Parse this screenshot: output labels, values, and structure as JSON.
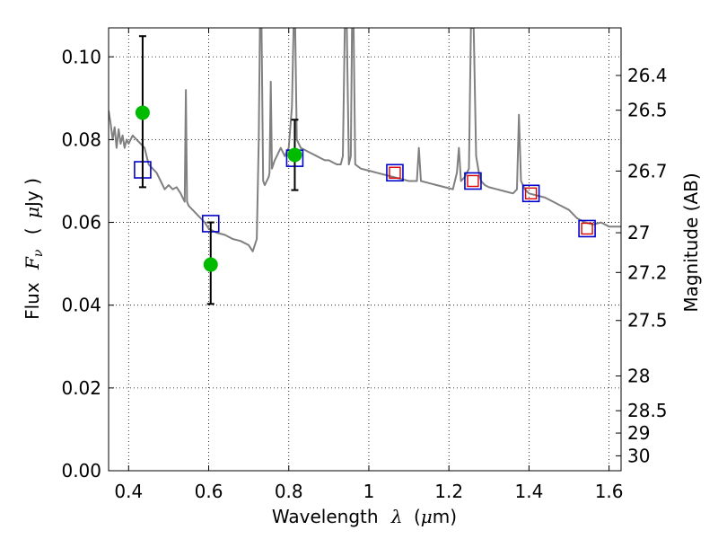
{
  "chart_data": {
    "type": "scatter",
    "xlabel_prefix": "Wavelength",
    "xlabel_symbol": "λ",
    "xlabel_unit_open": "(",
    "xlabel_unit_mu": "μ",
    "xlabel_unit_rest": "m)",
    "ylabel_prefix": "Flux",
    "ylabel_symbol": "F",
    "ylabel_subscript": "ν",
    "ylabel_unit_open": "(",
    "ylabel_unit_mu": "μ",
    "ylabel_unit_rest": "Jy )",
    "y2label": "Magnitude (AB)",
    "xlim": [
      0.35,
      1.63
    ],
    "ylim": [
      0.0,
      0.107
    ],
    "x_ticks": [
      {
        "value": 0.4,
        "label": "0.4"
      },
      {
        "value": 0.6,
        "label": "0.6"
      },
      {
        "value": 0.8,
        "label": "0.8"
      },
      {
        "value": 1.0,
        "label": "1"
      },
      {
        "value": 1.2,
        "label": "1.2"
      },
      {
        "value": 1.4,
        "label": "1.4"
      },
      {
        "value": 1.6,
        "label": "1.6"
      }
    ],
    "y_ticks": [
      {
        "value": 0.0,
        "label": "0.00"
      },
      {
        "value": 0.02,
        "label": "0.02"
      },
      {
        "value": 0.04,
        "label": "0.04"
      },
      {
        "value": 0.06,
        "label": "0.06"
      },
      {
        "value": 0.08,
        "label": "0.08"
      },
      {
        "value": 0.1,
        "label": "0.10"
      }
    ],
    "mag_ticks": [
      {
        "flux": 0.0955,
        "label": "26.4"
      },
      {
        "flux": 0.0871,
        "label": "26.5"
      },
      {
        "flux": 0.0724,
        "label": "26.7"
      },
      {
        "flux": 0.0575,
        "label": "27"
      },
      {
        "flux": 0.0479,
        "label": "27.2"
      },
      {
        "flux": 0.0363,
        "label": "27.5"
      },
      {
        "flux": 0.0229,
        "label": "28"
      },
      {
        "flux": 0.0145,
        "label": "28.5"
      },
      {
        "flux": 0.0091,
        "label": "29"
      },
      {
        "flux": 0.0036,
        "label": "30"
      }
    ],
    "grid": true,
    "colors": {
      "sed": "#808080",
      "observed": "#00bb00",
      "model_box": "#0000cc",
      "model_inner": "#dd0000",
      "errorbar": "#000000"
    },
    "sed_model": [
      [
        0.35,
        0.087
      ],
      [
        0.355,
        0.084
      ],
      [
        0.36,
        0.08
      ],
      [
        0.365,
        0.083
      ],
      [
        0.37,
        0.078
      ],
      [
        0.375,
        0.0825
      ],
      [
        0.38,
        0.079
      ],
      [
        0.385,
        0.081
      ],
      [
        0.39,
        0.078
      ],
      [
        0.395,
        0.08
      ],
      [
        0.4,
        0.079
      ],
      [
        0.41,
        0.081
      ],
      [
        0.42,
        0.08
      ],
      [
        0.43,
        0.079
      ],
      [
        0.44,
        0.078
      ],
      [
        0.45,
        0.074
      ],
      [
        0.46,
        0.073
      ],
      [
        0.47,
        0.072
      ],
      [
        0.48,
        0.07
      ],
      [
        0.49,
        0.068
      ],
      [
        0.5,
        0.069
      ],
      [
        0.51,
        0.068
      ],
      [
        0.52,
        0.0685
      ],
      [
        0.53,
        0.067
      ],
      [
        0.535,
        0.066
      ],
      [
        0.54,
        0.065
      ],
      [
        0.543,
        0.092
      ],
      [
        0.546,
        0.065
      ],
      [
        0.55,
        0.064
      ],
      [
        0.56,
        0.063
      ],
      [
        0.57,
        0.062
      ],
      [
        0.58,
        0.061
      ],
      [
        0.59,
        0.06
      ],
      [
        0.6,
        0.0585
      ],
      [
        0.62,
        0.0575
      ],
      [
        0.64,
        0.057
      ],
      [
        0.66,
        0.056
      ],
      [
        0.68,
        0.0555
      ],
      [
        0.7,
        0.0545
      ],
      [
        0.71,
        0.053
      ],
      [
        0.72,
        0.056
      ],
      [
        0.725,
        0.08
      ],
      [
        0.728,
        0.107
      ],
      [
        0.732,
        0.107
      ],
      [
        0.736,
        0.07
      ],
      [
        0.74,
        0.069
      ],
      [
        0.745,
        0.07
      ],
      [
        0.75,
        0.071
      ],
      [
        0.752,
        0.072
      ],
      [
        0.755,
        0.094
      ],
      [
        0.758,
        0.073
      ],
      [
        0.765,
        0.075
      ],
      [
        0.77,
        0.076
      ],
      [
        0.78,
        0.078
      ],
      [
        0.79,
        0.076
      ],
      [
        0.8,
        0.078
      ],
      [
        0.808,
        0.088
      ],
      [
        0.812,
        0.107
      ],
      [
        0.816,
        0.107
      ],
      [
        0.82,
        0.08
      ],
      [
        0.83,
        0.078
      ],
      [
        0.84,
        0.0775
      ],
      [
        0.85,
        0.077
      ],
      [
        0.86,
        0.0765
      ],
      [
        0.87,
        0.076
      ],
      [
        0.88,
        0.0755
      ],
      [
        0.89,
        0.075
      ],
      [
        0.9,
        0.075
      ],
      [
        0.91,
        0.0745
      ],
      [
        0.92,
        0.074
      ],
      [
        0.93,
        0.074
      ],
      [
        0.935,
        0.076
      ],
      [
        0.94,
        0.107
      ],
      [
        0.945,
        0.107
      ],
      [
        0.95,
        0.074
      ],
      [
        0.955,
        0.076
      ],
      [
        0.958,
        0.107
      ],
      [
        0.962,
        0.107
      ],
      [
        0.966,
        0.074
      ],
      [
        0.98,
        0.073
      ],
      [
        1.0,
        0.0725
      ],
      [
        1.02,
        0.072
      ],
      [
        1.04,
        0.0715
      ],
      [
        1.06,
        0.071
      ],
      [
        1.08,
        0.0705
      ],
      [
        1.1,
        0.07
      ],
      [
        1.12,
        0.07
      ],
      [
        1.125,
        0.078
      ],
      [
        1.13,
        0.07
      ],
      [
        1.15,
        0.0695
      ],
      [
        1.17,
        0.069
      ],
      [
        1.19,
        0.0685
      ],
      [
        1.21,
        0.068
      ],
      [
        1.22,
        0.072
      ],
      [
        1.225,
        0.078
      ],
      [
        1.23,
        0.07
      ],
      [
        1.24,
        0.071
      ],
      [
        1.25,
        0.073
      ],
      [
        1.255,
        0.107
      ],
      [
        1.262,
        0.107
      ],
      [
        1.268,
        0.076
      ],
      [
        1.275,
        0.072
      ],
      [
        1.28,
        0.07
      ],
      [
        1.29,
        0.069
      ],
      [
        1.3,
        0.0685
      ],
      [
        1.32,
        0.068
      ],
      [
        1.34,
        0.0675
      ],
      [
        1.36,
        0.067
      ],
      [
        1.37,
        0.068
      ],
      [
        1.375,
        0.086
      ],
      [
        1.38,
        0.07
      ],
      [
        1.39,
        0.068
      ],
      [
        1.4,
        0.067
      ],
      [
        1.42,
        0.0665
      ],
      [
        1.44,
        0.066
      ],
      [
        1.46,
        0.065
      ],
      [
        1.48,
        0.064
      ],
      [
        1.5,
        0.063
      ],
      [
        1.52,
        0.061
      ],
      [
        1.54,
        0.06
      ],
      [
        1.56,
        0.0595
      ],
      [
        1.58,
        0.06
      ],
      [
        1.6,
        0.059
      ],
      [
        1.62,
        0.059
      ],
      [
        1.63,
        0.059
      ]
    ],
    "observed": [
      {
        "x": 0.435,
        "y": 0.0865,
        "err_lo": 0.0685,
        "err_hi": 0.105
      },
      {
        "x": 0.605,
        "y": 0.0498,
        "err_lo": 0.0403,
        "err_hi": 0.06
      },
      {
        "x": 0.815,
        "y": 0.0763,
        "err_lo": 0.0678,
        "err_hi": 0.0848
      }
    ],
    "model_photometry": [
      {
        "x": 0.435,
        "y": 0.0727,
        "inner": false
      },
      {
        "x": 0.605,
        "y": 0.0597,
        "inner": false
      },
      {
        "x": 0.815,
        "y": 0.0755,
        "inner": false
      },
      {
        "x": 1.065,
        "y": 0.072,
        "inner": true
      },
      {
        "x": 1.26,
        "y": 0.07,
        "inner": true
      },
      {
        "x": 1.405,
        "y": 0.067,
        "inner": true
      },
      {
        "x": 1.545,
        "y": 0.0585,
        "inner": true
      }
    ]
  }
}
